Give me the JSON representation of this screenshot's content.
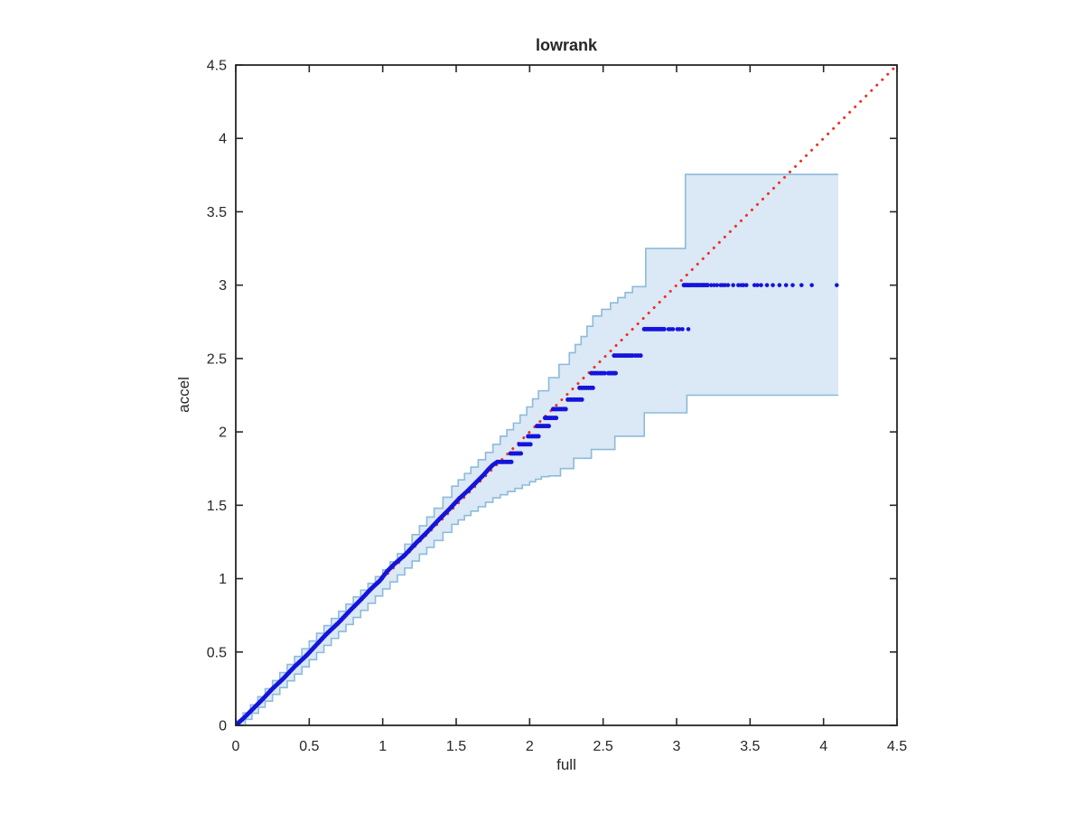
{
  "window": {
    "background": "#ffffff"
  },
  "chart_data": {
    "type": "scatter",
    "title": "lowrank",
    "xlabel": "full",
    "ylabel": "accel",
    "xlim": [
      0,
      4.5
    ],
    "ylim": [
      0,
      4.5
    ],
    "xticks": [
      0,
      0.5,
      1,
      1.5,
      2,
      2.5,
      3,
      3.5,
      4,
      4.5
    ],
    "yticks": [
      0,
      0.5,
      1,
      1.5,
      2,
      2.5,
      3,
      3.5,
      4,
      4.5
    ],
    "xtick_labels": [
      "0",
      "0.5",
      "1",
      "1.5",
      "2",
      "2.5",
      "3",
      "3.5",
      "4",
      "4.5"
    ],
    "ytick_labels": [
      "0",
      "0.5",
      "1",
      "1.5",
      "2",
      "2.5",
      "3",
      "3.5",
      "4",
      "4.5"
    ],
    "grid": false,
    "legend": null,
    "axis_color": "#262626",
    "series": [
      {
        "name": "identity_line",
        "type": "line",
        "style": "dotted",
        "color": "#f0301f",
        "points": [
          [
            0,
            0
          ],
          [
            4.5,
            4.5
          ]
        ]
      },
      {
        "name": "confidence_band",
        "type": "band",
        "fill_color": "#dbe8f5",
        "edge_color": "#8cbbda",
        "upper": [
          [
            0.0,
            0.03
          ],
          [
            0.2,
            0.25
          ],
          [
            0.4,
            0.47
          ],
          [
            0.6,
            0.68
          ],
          [
            0.8,
            0.875
          ],
          [
            1.0,
            1.06
          ],
          [
            1.1,
            1.17
          ],
          [
            1.2,
            1.3
          ],
          [
            1.35,
            1.48
          ],
          [
            1.47,
            1.63
          ],
          [
            1.6,
            1.76
          ],
          [
            1.7,
            1.86
          ],
          [
            1.8,
            1.97
          ],
          [
            1.89,
            2.06
          ],
          [
            1.98,
            2.17
          ],
          [
            2.06,
            2.28
          ],
          [
            2.13,
            2.37
          ],
          [
            2.2,
            2.46
          ],
          [
            2.27,
            2.54
          ],
          [
            2.35,
            2.65
          ],
          [
            2.43,
            2.79
          ],
          [
            2.55,
            2.88
          ],
          [
            2.65,
            2.95
          ],
          [
            2.7,
            2.99
          ],
          [
            2.79,
            2.99
          ],
          [
            2.79,
            3.25
          ],
          [
            3.06,
            3.25
          ],
          [
            3.06,
            3.755
          ],
          [
            4.1,
            3.755
          ]
        ],
        "lower": [
          [
            0.02,
            0.0
          ],
          [
            0.2,
            0.165
          ],
          [
            0.4,
            0.35
          ],
          [
            0.6,
            0.545
          ],
          [
            0.8,
            0.735
          ],
          [
            1.0,
            0.93
          ],
          [
            1.2,
            1.12
          ],
          [
            1.35,
            1.26
          ],
          [
            1.47,
            1.37
          ],
          [
            1.6,
            1.46
          ],
          [
            1.75,
            1.55
          ],
          [
            1.9,
            1.615
          ],
          [
            2.0,
            1.66
          ],
          [
            2.08,
            1.695
          ],
          [
            2.13,
            1.7
          ],
          [
            2.21,
            1.7
          ],
          [
            2.21,
            1.75
          ],
          [
            2.3,
            1.75
          ],
          [
            2.3,
            1.82
          ],
          [
            2.42,
            1.82
          ],
          [
            2.42,
            1.88
          ],
          [
            2.58,
            1.88
          ],
          [
            2.58,
            1.97
          ],
          [
            2.78,
            1.97
          ],
          [
            2.78,
            2.13
          ],
          [
            3.07,
            2.13
          ],
          [
            3.07,
            2.25
          ],
          [
            4.1,
            2.25
          ]
        ]
      },
      {
        "name": "qq_points",
        "type": "scatter",
        "color": "#1414dc",
        "dense_path": [
          [
            0.01,
            0.01
          ],
          [
            0.06,
            0.055
          ],
          [
            0.12,
            0.115
          ],
          [
            0.18,
            0.175
          ],
          [
            0.25,
            0.25
          ],
          [
            0.32,
            0.315
          ],
          [
            0.4,
            0.4
          ],
          [
            0.48,
            0.475
          ],
          [
            0.55,
            0.55
          ],
          [
            0.62,
            0.625
          ],
          [
            0.7,
            0.7
          ],
          [
            0.78,
            0.785
          ],
          [
            0.85,
            0.855
          ],
          [
            0.92,
            0.93
          ],
          [
            0.98,
            0.985
          ],
          [
            1.03,
            1.05
          ],
          [
            1.08,
            1.1
          ],
          [
            1.15,
            1.16
          ],
          [
            1.22,
            1.235
          ],
          [
            1.3,
            1.315
          ],
          [
            1.38,
            1.4
          ],
          [
            1.45,
            1.47
          ],
          [
            1.52,
            1.545
          ],
          [
            1.58,
            1.6
          ],
          [
            1.63,
            1.65
          ],
          [
            1.68,
            1.7
          ],
          [
            1.72,
            1.745
          ],
          [
            1.75,
            1.775
          ],
          [
            1.78,
            1.795
          ]
        ],
        "clusters": [
          [
            1.795,
            1.78,
            1.875
          ],
          [
            1.853,
            1.87,
            1.94
          ],
          [
            1.915,
            1.93,
            2.005
          ],
          [
            1.97,
            1.99,
            2.06
          ],
          [
            2.04,
            2.05,
            2.13
          ],
          [
            2.095,
            2.105,
            2.18
          ],
          [
            2.155,
            2.16,
            2.245
          ],
          [
            2.22,
            2.26,
            2.355
          ],
          [
            2.3,
            2.34,
            2.43
          ],
          [
            2.4,
            2.42,
            2.51
          ],
          [
            2.4,
            2.535,
            2.585
          ],
          [
            2.52,
            2.575,
            2.7
          ],
          [
            2.52,
            2.72,
            2.755
          ],
          [
            2.7,
            2.78,
            2.915
          ],
          [
            3.0,
            3.05,
            3.105
          ],
          [
            3.0,
            3.12,
            3.21
          ]
        ],
        "points": [
          [
            2.945,
            2.7
          ],
          [
            2.96,
            2.7
          ],
          [
            2.975,
            2.7
          ],
          [
            3.005,
            2.7
          ],
          [
            3.02,
            2.7
          ],
          [
            3.04,
            2.7
          ],
          [
            3.08,
            2.7
          ],
          [
            3.235,
            3.0
          ],
          [
            3.255,
            3.0
          ],
          [
            3.275,
            3.0
          ],
          [
            3.3,
            3.0
          ],
          [
            3.315,
            3.0
          ],
          [
            3.33,
            3.0
          ],
          [
            3.35,
            3.0
          ],
          [
            3.385,
            3.0
          ],
          [
            3.42,
            3.0
          ],
          [
            3.44,
            3.0
          ],
          [
            3.455,
            3.0
          ],
          [
            3.475,
            3.0
          ],
          [
            3.53,
            3.0
          ],
          [
            3.55,
            3.0
          ],
          [
            3.575,
            3.0
          ],
          [
            3.615,
            3.0
          ],
          [
            3.655,
            3.0
          ],
          [
            3.7,
            3.0
          ],
          [
            3.745,
            3.0
          ],
          [
            3.79,
            3.0
          ],
          [
            3.85,
            3.0
          ],
          [
            3.92,
            3.0
          ],
          [
            4.09,
            3.0
          ]
        ]
      }
    ]
  }
}
